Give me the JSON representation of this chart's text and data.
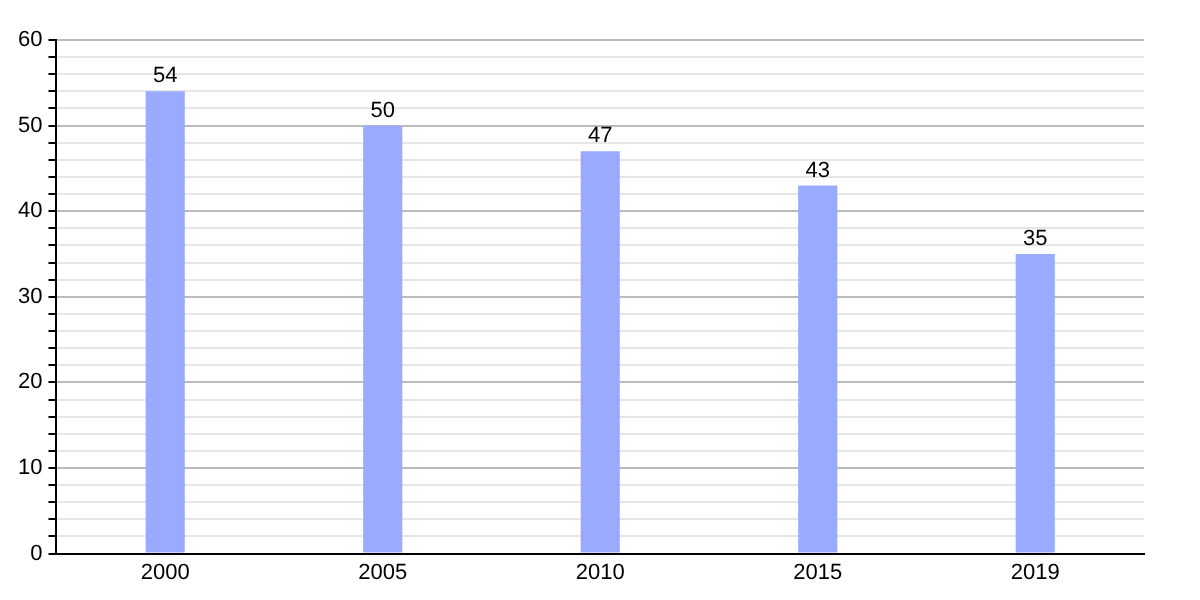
{
  "chart_data": {
    "type": "bar",
    "categories": [
      "2000",
      "2005",
      "2010",
      "2015",
      "2019"
    ],
    "values": [
      54,
      50,
      47,
      43,
      35
    ],
    "color": "#99aaff",
    "ylim": [
      0,
      60
    ],
    "yticks": [
      0,
      {
        "value": 2,
        "label": null
      },
      {
        "value": 4,
        "label": null
      },
      {
        "value": 6,
        "label": null
      },
      {
        "value": 8,
        "label": null
      },
      10,
      {
        "value": 12,
        "label": null
      },
      {
        "value": 14,
        "label": null
      },
      {
        "value": 16,
        "label": null
      },
      {
        "value": 18,
        "label": null
      },
      20,
      {
        "value": 22,
        "label": null
      },
      {
        "value": 24,
        "label": null
      },
      {
        "value": 26,
        "label": null
      },
      {
        "value": 28,
        "label": null
      },
      30,
      {
        "value": 32,
        "label": null
      },
      {
        "value": 34,
        "label": null
      },
      {
        "value": 36,
        "label": null
      },
      {
        "value": 38,
        "label": null
      },
      40,
      {
        "value": 42,
        "label": null
      },
      {
        "value": 44,
        "label": null
      },
      {
        "value": 46,
        "label": null
      },
      {
        "value": 48,
        "label": null
      },
      50,
      {
        "value": 52,
        "label": null
      },
      {
        "value": 54,
        "label": null
      },
      {
        "value": 56,
        "label": null
      },
      {
        "value": 58,
        "label": null
      },
      60
    ],
    "grid": "y",
    "legend": false,
    "data_labels": true
  }
}
